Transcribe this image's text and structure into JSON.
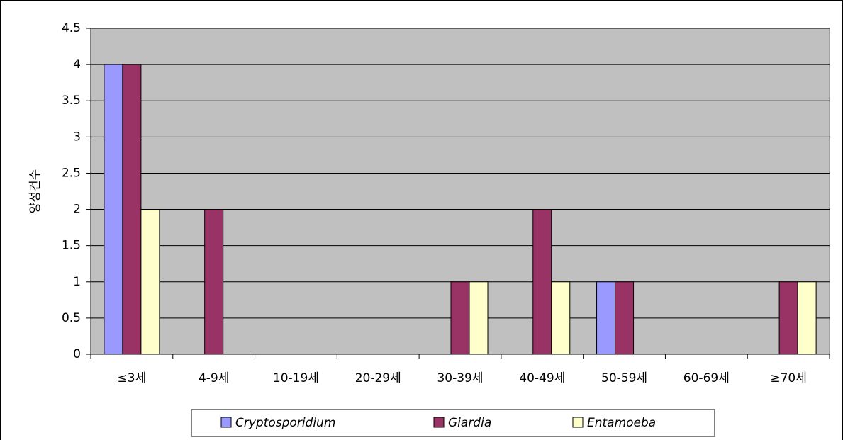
{
  "chart_data": {
    "type": "bar",
    "y_label": "양성건수",
    "categories": [
      "≤3세",
      "4-9세",
      "10-19세",
      "20-29세",
      "30-39세",
      "40-49세",
      "50-59세",
      "60-69세",
      "≥70세"
    ],
    "series": [
      {
        "name": "Cryptosporidium",
        "color": "#9999FF",
        "values": [
          4,
          0,
          0,
          0,
          0,
          0,
          1,
          0,
          0
        ]
      },
      {
        "name": "Giardia",
        "color": "#993366",
        "values": [
          4,
          2,
          0,
          0,
          1,
          2,
          1,
          0,
          1
        ]
      },
      {
        "name": "Entamoeba",
        "color": "#FFFFCC",
        "values": [
          2,
          0,
          0,
          0,
          1,
          1,
          0,
          0,
          1
        ]
      }
    ],
    "ylim": [
      0,
      4.5
    ],
    "yticks": [
      0,
      0.5,
      1,
      1.5,
      2,
      2.5,
      3,
      3.5,
      4,
      4.5
    ],
    "grid": true,
    "legend": "bottom",
    "plot_background": "#C0C0C0"
  }
}
